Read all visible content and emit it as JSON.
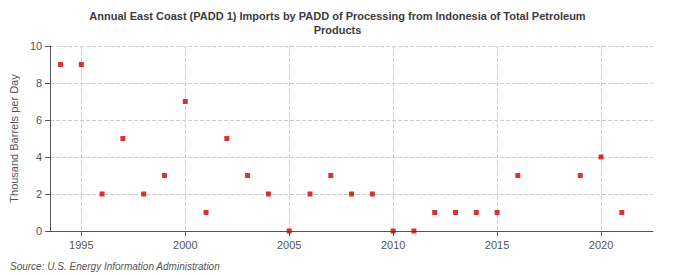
{
  "chart_data": {
    "type": "scatter",
    "title": "Annual East Coast (PADD 1) Imports by PADD of Processing from Indonesia of Total Petroleum\nProducts",
    "ylabel": "Thousand Barrels per Day",
    "annotation": "Source: U.S. Energy Information Administration",
    "x": [
      1994,
      1995,
      1996,
      1997,
      1998,
      1999,
      2000,
      2001,
      2002,
      2003,
      2004,
      2005,
      2006,
      2007,
      2008,
      2009,
      2010,
      2011,
      2012,
      2013,
      2014,
      2015,
      2016,
      2019,
      2020,
      2021
    ],
    "values": [
      9,
      9,
      2,
      5,
      2,
      3,
      7,
      1,
      5,
      3,
      2,
      0,
      2,
      3,
      2,
      2,
      0,
      0,
      1,
      1,
      1,
      1,
      3,
      3,
      4,
      1
    ],
    "color": "#cc0000",
    "marker": "square",
    "xlim": [
      1993.5,
      2022.5
    ],
    "ylim": [
      0,
      10
    ],
    "xticks": [
      1995,
      2000,
      2005,
      2010,
      2015,
      2020
    ],
    "yticks": [
      0,
      2,
      4,
      6,
      8,
      10
    ],
    "grid": true
  }
}
